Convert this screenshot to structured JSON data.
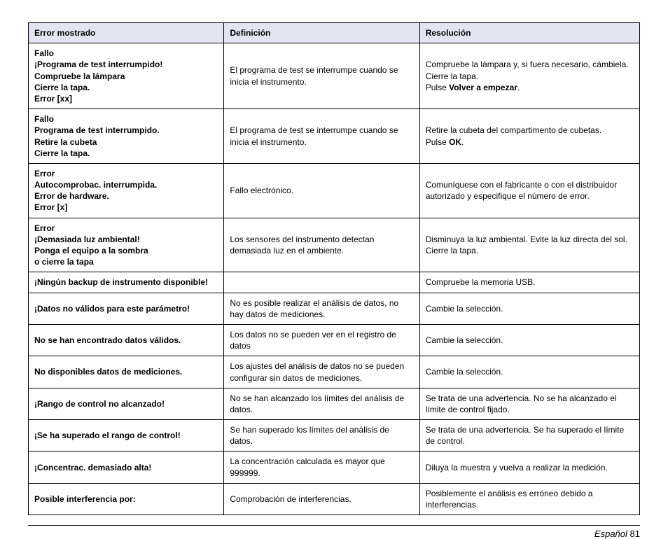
{
  "table": {
    "header_bg": "#e3e5f3",
    "border_color": "#000000",
    "columns": [
      {
        "key": "error",
        "label": "Error mostrado"
      },
      {
        "key": "def",
        "label": "Definición"
      },
      {
        "key": "res",
        "label": "Resolución"
      }
    ],
    "rows": [
      {
        "error": [
          "Fallo",
          "¡Programa de test interrumpido!",
          "Compruebe la lámpara",
          "Cierre la tapa.",
          "Error [xx]"
        ],
        "def": "El programa de test se interrumpe cuando se inicia el instrumento.",
        "res": [
          {
            "t": "Compruebe la lámpara y, si fuera necesario, cámbiela."
          },
          {
            "t": "Cierre la tapa."
          },
          {
            "t": "Pulse ",
            "b": "Volver a empezar",
            "after": "."
          }
        ]
      },
      {
        "error": [
          "Fallo",
          "Programa de test interrumpido.",
          "Retire la cubeta",
          "Cierre la tapa."
        ],
        "def": "El programa de test se interrumpe cuando se inicia el instrumento.",
        "res": [
          {
            "t": "Retire la cubeta del compartimento de cubetas."
          },
          {
            "t": "Pulse ",
            "b": "OK",
            "after": "."
          }
        ]
      },
      {
        "error": [
          "Error",
          "Autocomprobac. interrumpida.",
          "Error de hardware.",
          "Error [x]"
        ],
        "def": "Fallo electrónico.",
        "res": [
          {
            "t": "Comuníquese con el fabricante o con el distribuidor autorizado y especifique el número de error."
          }
        ]
      },
      {
        "error": [
          "Error",
          "¡Demasiada luz ambiental!",
          "Ponga el equipo a la sombra",
          "o cierre la tapa"
        ],
        "def": "Los sensores del instrumento detectan demasiada luz en el ambiente.",
        "res": [
          {
            "t": "Disminuya la luz ambiental. Evite la luz directa del sol."
          },
          {
            "t": "Cierre la tapa."
          }
        ]
      },
      {
        "error": [
          "¡Ningún backup de instrumento disponible!"
        ],
        "def": "",
        "res": [
          {
            "t": "Compruebe la memoria USB."
          }
        ]
      },
      {
        "error": [
          "¡Datos no válidos para este parámetro!"
        ],
        "def": "No es posible realizar el análisis de datos, no hay datos de mediciones.",
        "res": [
          {
            "t": "Cambie la selección."
          }
        ]
      },
      {
        "error": [
          "No se han encontrado datos válidos."
        ],
        "def": "Los datos no se pueden ver en el registro de datos",
        "res": [
          {
            "t": "Cambie la selección."
          }
        ]
      },
      {
        "error": [
          "No disponibles datos de mediciones."
        ],
        "def": "Los ajustes del análisis de datos no se pueden configurar sin datos de mediciones.",
        "res": [
          {
            "t": "Cambie la selección."
          }
        ]
      },
      {
        "error": [
          "¡Rango de control no alcanzado!"
        ],
        "def": "No se han alcanzado los límites del análisis de datos.",
        "res": [
          {
            "t": "Se trata de una advertencia. No se ha alcanzado el límite de control fijado."
          }
        ]
      },
      {
        "error": [
          "¡Se ha superado el rango de control!"
        ],
        "def": "Se han superado los límites del análisis de datos.",
        "res": [
          {
            "t": "Se trata de una advertencia. Se ha superado el límite de control."
          }
        ]
      },
      {
        "error": [
          "¡Concentrac. demasiado alta!"
        ],
        "def": "La concentración calculada es mayor que 999999.",
        "res": [
          {
            "t": "Diluya la muestra y vuelva a realizar la medición."
          }
        ]
      },
      {
        "error": [
          "Posible interferencia por:"
        ],
        "def": "Comprobación de interferencias.",
        "res": [
          {
            "t": "Posiblemente el análisis es erróneo debido a interferencias."
          }
        ]
      }
    ]
  },
  "footer": {
    "language": "Español",
    "page": "81"
  }
}
